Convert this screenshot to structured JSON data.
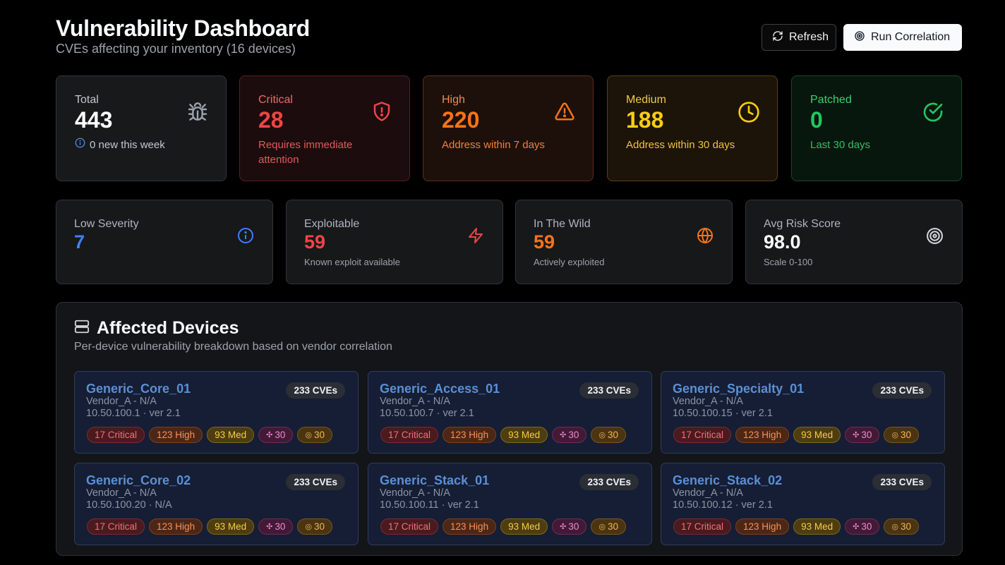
{
  "header": {
    "title": "Vulnerability Dashboard",
    "subtitle": "CVEs affecting your inventory (16 devices)"
  },
  "actions": {
    "refresh_label": "Refresh",
    "run_correlation_label": "Run Correlation"
  },
  "summary": {
    "total": {
      "label": "Total",
      "value": "443",
      "note": "0 new this week",
      "icon": "bug-icon",
      "color": "#ffffff"
    },
    "critical": {
      "label": "Critical",
      "value": "28",
      "note": "Requires immediate attention",
      "icon": "shield-alert-icon",
      "color": "#ef4444"
    },
    "high": {
      "label": "High",
      "value": "220",
      "note": "Address within 7 days",
      "icon": "warning-triangle-icon",
      "color": "#f97316"
    },
    "medium": {
      "label": "Medium",
      "value": "188",
      "note": "Address within 30 days",
      "icon": "clock-icon",
      "color": "#facc15"
    },
    "patched": {
      "label": "Patched",
      "value": "0",
      "note": "Last 30 days",
      "icon": "check-circle-icon",
      "color": "#22c55e"
    }
  },
  "secondary": {
    "low": {
      "label": "Low Severity",
      "value": "7",
      "note": "",
      "icon": "info-icon",
      "color": "#3b82f6"
    },
    "exploitable": {
      "label": "Exploitable",
      "value": "59",
      "note": "Known exploit available",
      "icon": "lightning-icon",
      "color": "#ef4444"
    },
    "wild": {
      "label": "In The Wild",
      "value": "59",
      "note": "Actively exploited",
      "icon": "globe-icon",
      "color": "#f97316"
    },
    "risk": {
      "label": "Avg Risk Score",
      "value": "98.0",
      "note": "Scale 0-100",
      "icon": "target-icon",
      "color": "#ffffff"
    }
  },
  "devices_panel": {
    "title": "Affected Devices",
    "subtitle": "Per-device vulnerability breakdown based on vendor correlation",
    "icon": "server-icon",
    "devices": [
      {
        "name": "Generic_Core_01",
        "vendor": "Vendor_A - N/A",
        "ip": "10.50.100.1 · ver 2.1",
        "cves": "233 CVEs",
        "critical": "17 Critical",
        "high": "123 High",
        "med": "93 Med",
        "exploit": "30",
        "wild": "30"
      },
      {
        "name": "Generic_Access_01",
        "vendor": "Vendor_A - N/A",
        "ip": "10.50.100.7 · ver 2.1",
        "cves": "233 CVEs",
        "critical": "17 Critical",
        "high": "123 High",
        "med": "93 Med",
        "exploit": "30",
        "wild": "30"
      },
      {
        "name": "Generic_Specialty_01",
        "vendor": "Vendor_A - N/A",
        "ip": "10.50.100.15 · ver 2.1",
        "cves": "233 CVEs",
        "critical": "17 Critical",
        "high": "123 High",
        "med": "93 Med",
        "exploit": "30",
        "wild": "30"
      },
      {
        "name": "Generic_Core_02",
        "vendor": "Vendor_A - N/A",
        "ip": "10.50.100.20 · N/A",
        "cves": "233 CVEs",
        "critical": "17 Critical",
        "high": "123 High",
        "med": "93 Med",
        "exploit": "30",
        "wild": "30"
      },
      {
        "name": "Generic_Stack_01",
        "vendor": "Vendor_A - N/A",
        "ip": "10.50.100.11 · ver 2.1",
        "cves": "233 CVEs",
        "critical": "17 Critical",
        "high": "123 High",
        "med": "93 Med",
        "exploit": "30",
        "wild": "30"
      },
      {
        "name": "Generic_Stack_02",
        "vendor": "Vendor_A - N/A",
        "ip": "10.50.100.12 · ver 2.1",
        "cves": "233 CVEs",
        "critical": "17 Critical",
        "high": "123 High",
        "med": "93 Med",
        "exploit": "30",
        "wild": "30"
      }
    ]
  }
}
